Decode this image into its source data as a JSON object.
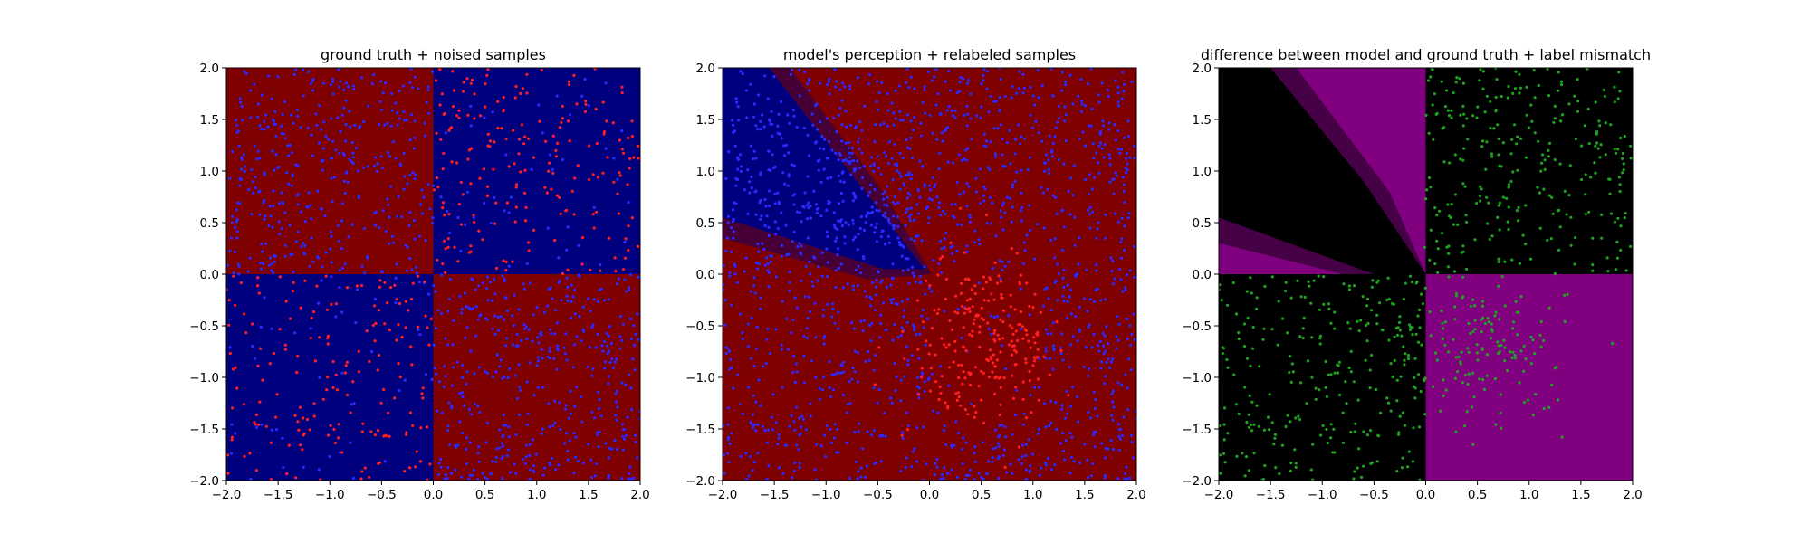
{
  "figure": {
    "colors": {
      "gt_positive": "#7f0000",
      "gt_negative": "#00007f",
      "sample_red": "#ff1f1f",
      "sample_blue": "#2a2aff",
      "mismatch_fill": "#800080",
      "match_fill": "#000000",
      "mismatch_sample": "#1fa21f"
    }
  },
  "chart_data": [
    {
      "type": "heatmap",
      "title": "ground truth + noised samples",
      "xlabel": "",
      "ylabel": "",
      "xlim": [
        -2.0,
        2.0
      ],
      "ylim": [
        -2.0,
        2.0
      ],
      "xticks": [
        "−2.0",
        "−1.5",
        "−1.0",
        "−0.5",
        "0.0",
        "0.5",
        "1.0",
        "1.5",
        "2.0"
      ],
      "yticks": [
        "−2.0",
        "−1.5",
        "−1.0",
        "−0.5",
        "0.0",
        "0.5",
        "1.0",
        "1.5",
        "2.0"
      ],
      "grid": false,
      "regions": [
        {
          "quadrant": "x<0, y>0",
          "value": "dark red"
        },
        {
          "quadrant": "x>0, y>0",
          "value": "dark blue"
        },
        {
          "quadrant": "x<0, y<0",
          "value": "dark blue"
        },
        {
          "quadrant": "x>0, y<0",
          "value": "dark red"
        }
      ],
      "scatter": [
        {
          "color": "blue",
          "region": "x*y<0 (mostly)",
          "approx_count": 1000,
          "x_range": [
            -2.0,
            2.0
          ],
          "y_range": [
            -2.0,
            2.0
          ]
        },
        {
          "color": "red",
          "region": "x*y>0 (mostly)",
          "approx_count": 500,
          "x_range": [
            -2.0,
            2.0
          ],
          "y_range": [
            -2.0,
            2.0
          ]
        }
      ]
    },
    {
      "type": "heatmap",
      "title": "model's perception + relabeled samples",
      "xlabel": "",
      "ylabel": "",
      "xlim": [
        -2.0,
        2.0
      ],
      "ylim": [
        -2.0,
        2.0
      ],
      "xticks": [
        "−2.0",
        "−1.5",
        "−1.0",
        "−0.5",
        "0.0",
        "0.5",
        "1.0",
        "1.5",
        "2.0"
      ],
      "yticks": [
        "−2.0",
        "−1.5",
        "−1.0",
        "−0.5",
        "0.0",
        "0.5",
        "1.0",
        "1.5",
        "2.0"
      ],
      "grid": false,
      "regions": [
        {
          "shape": "diagonal band along x+y≈0 in upper-left quadrant",
          "value": "dark blue"
        },
        {
          "shape": "everywhere else",
          "value": "dark red"
        }
      ],
      "scatter": [
        {
          "color": "blue",
          "region": "everywhere except lower-right cluster",
          "approx_count": 1100
        },
        {
          "color": "red",
          "region": "cluster around (0.5, -0.6), x in [0, 1.3], y in [-2.0, 0]",
          "approx_count": 350
        }
      ]
    },
    {
      "type": "heatmap",
      "title": "difference between model and ground truth + label mismatch",
      "xlabel": "",
      "ylabel": "",
      "xlim": [
        -2.0,
        2.0
      ],
      "ylim": [
        -2.0,
        2.0
      ],
      "xticks": [
        "−2.0",
        "−1.5",
        "−1.0",
        "−0.5",
        "0.0",
        "0.5",
        "1.0",
        "1.5",
        "2.0"
      ],
      "yticks": [
        "−2.0",
        "−1.5",
        "−1.0",
        "−0.5",
        "0.0",
        "0.5",
        "1.0",
        "1.5",
        "2.0"
      ],
      "grid": false,
      "regions": [
        {
          "quadrant": "x<0, y>0",
          "value": "purple except black diagonal band"
        },
        {
          "quadrant": "x>0, y>0",
          "value": "black"
        },
        {
          "quadrant": "x<0, y<0",
          "value": "black"
        },
        {
          "quadrant": "x>0, y<0",
          "value": "purple"
        }
      ],
      "scatter": [
        {
          "color": "green",
          "region": "x>0, y>0",
          "approx_count": 300
        },
        {
          "color": "green",
          "region": "x<0, y<0",
          "approx_count": 320
        },
        {
          "color": "green",
          "region": "x>0, y<0 near origin cluster",
          "approx_count": 200
        }
      ]
    }
  ]
}
